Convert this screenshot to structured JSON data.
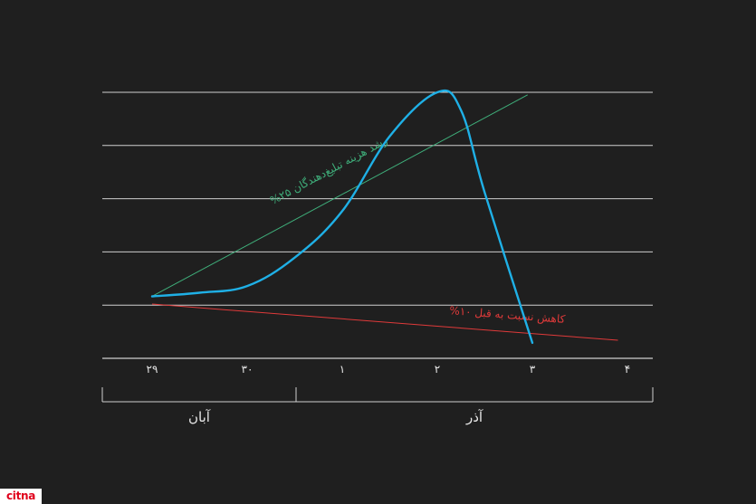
{
  "chart_data": {
    "type": "line",
    "x_labels": [
      "۲۹",
      "۳۰",
      "۱",
      "۲",
      "۳",
      "۴"
    ],
    "month_groups": [
      {
        "label": "آبان",
        "days": [
          "۲۹",
          "۳۰"
        ]
      },
      {
        "label": "آذر",
        "days": [
          "۱",
          "۲",
          "۳",
          "۴"
        ]
      }
    ],
    "series": [
      {
        "color": "#1fb0e6",
        "x": [
          0,
          0.5,
          1,
          1.5,
          2,
          2.5,
          3,
          3.25,
          3.5,
          4
        ],
        "y": [
          1.2,
          1.27,
          1.4,
          1.95,
          2.85,
          4.3,
          5.15,
          4.8,
          3.2,
          0.3
        ]
      }
    ],
    "trend_lines": [
      {
        "label": "%۲۵ رشد هزینه تبلیغ‌دهندگان",
        "color": "#3fae7a",
        "x": [
          0,
          3.95
        ],
        "y": [
          1.2,
          5.1
        ]
      },
      {
        "label": "%۱۰ کاهش نسبت به قبل",
        "color": "#e03a3a",
        "x": [
          0,
          4.9
        ],
        "y": [
          1.05,
          0.35
        ]
      }
    ],
    "ylim": [
      0,
      5.15
    ],
    "grid": true
  },
  "branding": {
    "logo_text": "citna"
  },
  "colors": {
    "background": "#1f1f1f",
    "grid": "#cfcfcf",
    "axis_text": "#e6e6e6"
  }
}
